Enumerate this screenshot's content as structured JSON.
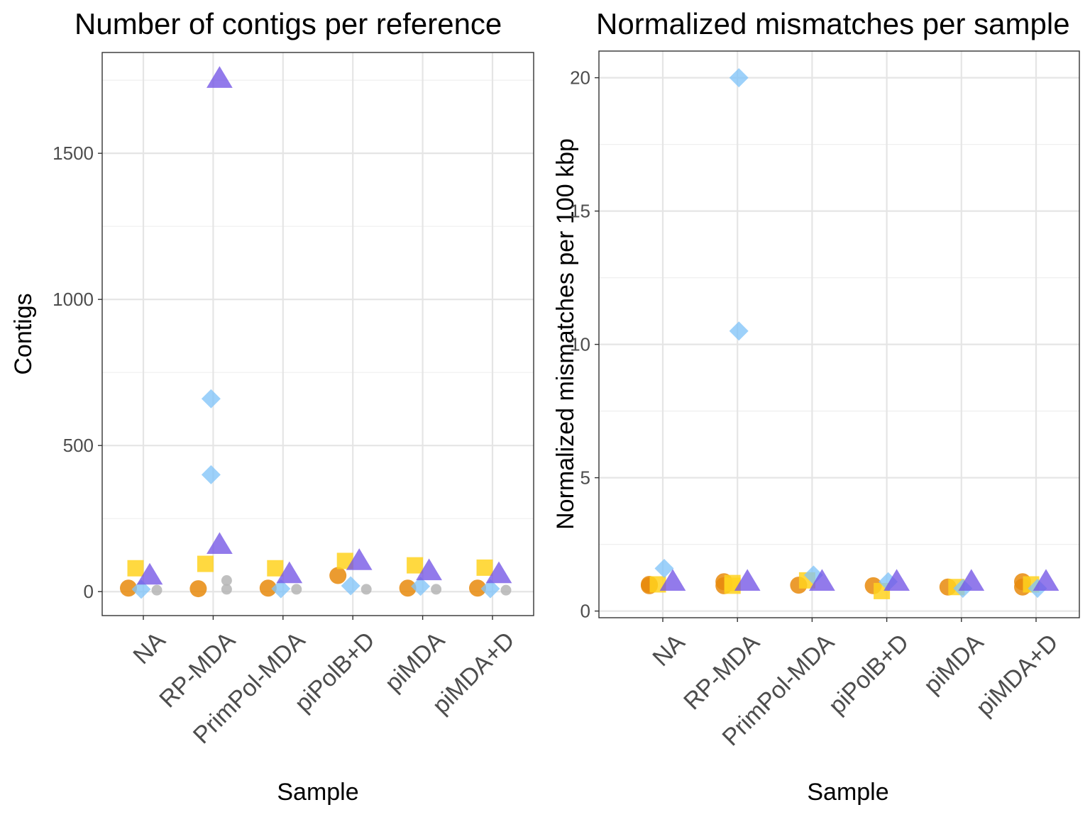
{
  "chart_data": [
    {
      "type": "scatter",
      "title": "Number of contigs per reference",
      "xlabel": "Sample",
      "ylabel": "Contigs",
      "categories": [
        "NA",
        "RP-MDA",
        "PrimPol-MDA",
        "piPolB+D",
        "piMDA",
        "piMDA+D"
      ],
      "yticks": [
        0,
        500,
        1000,
        1500
      ],
      "ylim": [
        -82,
        1845
      ],
      "grid": true,
      "series": [
        {
          "color": "#E8890C",
          "shape": "circle",
          "values": [
            12,
            10,
            12,
            55,
            12,
            12
          ]
        },
        {
          "color": "#FFD21F",
          "shape": "square",
          "values": [
            80,
            95,
            80,
            105,
            90,
            82
          ]
        },
        {
          "color": "#82C4F8",
          "shape": "diamond",
          "values": [
            8,
            [
              660,
              400
            ],
            10,
            20,
            18,
            10
          ]
        },
        {
          "color": "#7355E6",
          "shape": "triangle",
          "values": [
            55,
            [
              1755,
              160
            ],
            60,
            105,
            70,
            60
          ]
        },
        {
          "color": "#B5B5B5",
          "shape": "circle-small",
          "values": [
            5,
            [
              38,
              8
            ],
            8,
            8,
            8,
            5
          ]
        }
      ]
    },
    {
      "type": "scatter",
      "title": "Normalized mismatches per sample",
      "xlabel": "Sample",
      "ylabel": "Normalized mismatches per 100 kbp",
      "categories": [
        "NA",
        "RP-MDA",
        "PrimPol-MDA",
        "piPolB+D",
        "piMDA",
        "piMDA+D"
      ],
      "yticks": [
        0,
        5,
        10,
        15,
        20
      ],
      "ylim": [
        -0.25,
        21
      ],
      "grid": true,
      "series": [
        {
          "color": "#E8890C",
          "shape": "circle",
          "values": [
            [
              1.0,
              0.95
            ],
            [
              1.1,
              0.95
            ],
            0.97,
            0.95,
            0.9,
            [
              1.1,
              0.9
            ]
          ]
        },
        {
          "color": "#FFD21F",
          "shape": "square",
          "values": [
            1.0,
            [
              1.05,
              0.95
            ],
            1.15,
            0.75,
            0.9,
            1.0
          ]
        },
        {
          "color": "#82C4F8",
          "shape": "diamond",
          "values": [
            1.6,
            [
              20.0,
              10.5
            ],
            1.35,
            1.1,
            0.85,
            0.85
          ]
        },
        {
          "color": "#7355E6",
          "shape": "triangle",
          "values": [
            1.1,
            1.1,
            1.1,
            1.1,
            1.1,
            1.1
          ]
        }
      ]
    }
  ]
}
